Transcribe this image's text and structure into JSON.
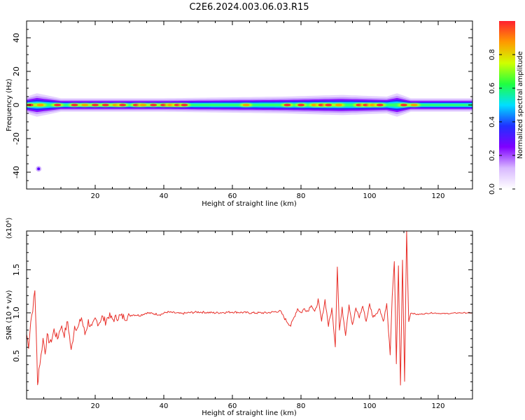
{
  "figure": {
    "title": "C2E6.2024.003.06.03.R15"
  },
  "colorbar": {
    "label": "Normalized spectral amplitude",
    "ticks": [
      "0.0",
      "0.2",
      "0.4",
      "0.6",
      "0.8"
    ],
    "tick_values": [
      0.0,
      0.2,
      0.4,
      0.6,
      0.8
    ],
    "range": [
      0,
      1
    ],
    "colormap": [
      "#ffffff",
      "#d8b8ff",
      "#8000ff",
      "#2030ff",
      "#00e0ff",
      "#20ff40",
      "#d0ff00",
      "#ff9900",
      "#ff2030"
    ]
  },
  "chart_data": [
    {
      "type": "heatmap",
      "title": "",
      "xlabel": "Height of straight line (km)",
      "ylabel": "Frequency (Hz)",
      "xlim": [
        0,
        130
      ],
      "ylim": [
        -50,
        50
      ],
      "xticks": [
        20,
        40,
        60,
        80,
        100,
        120
      ],
      "yticks": [
        -40,
        -20,
        0,
        20,
        40
      ],
      "band": {
        "center_hz": 0,
        "halfwidth_hz": [
          {
            "x": 0,
            "w": 5
          },
          {
            "x": 3,
            "w": 7
          },
          {
            "x": 10,
            "w": 4
          },
          {
            "x": 40,
            "w": 4
          },
          {
            "x": 75,
            "w": 5
          },
          {
            "x": 92,
            "w": 6
          },
          {
            "x": 105,
            "w": 5
          },
          {
            "x": 108,
            "w": 7
          },
          {
            "x": 112,
            "w": 4
          },
          {
            "x": 130,
            "w": 4
          }
        ],
        "hot_spots_km": [
          1,
          4,
          9,
          14,
          17,
          20,
          23,
          26,
          28,
          32,
          34,
          37,
          40,
          42,
          44,
          46,
          64,
          76,
          80,
          84,
          86,
          88,
          91,
          97,
          99,
          101,
          103,
          110,
          113
        ]
      },
      "isolated_spot": {
        "x": 3.5,
        "y": -38
      }
    },
    {
      "type": "line",
      "title": "",
      "xlabel": "Height of straight line (km)",
      "ylabel": "SNR (10 * v/v)",
      "multiplier_label": "(x10⁴)",
      "xlim": [
        0,
        130
      ],
      "ylim": [
        0,
        1.95
      ],
      "xticks": [
        20,
        40,
        60,
        80,
        100,
        120
      ],
      "yticks": [
        0.5,
        1.0,
        1.5
      ],
      "ytick_labels": [
        "0.5",
        "1.0",
        "1.5"
      ],
      "color": "#e8302a",
      "series": [
        {
          "x": [
            0,
            0.6,
            1.2,
            1.8,
            2.4,
            2.8,
            3.2,
            3.6,
            4.2,
            4.8,
            5.4,
            6,
            7,
            8,
            9,
            10,
            11,
            12,
            13,
            14,
            15,
            16,
            17,
            18,
            19,
            20,
            21,
            22,
            23,
            24,
            25,
            27,
            29,
            31,
            33,
            35,
            37,
            39,
            41,
            43,
            45,
            47,
            50,
            55,
            60,
            65,
            70,
            74,
            75.5,
            77,
            78,
            79,
            80,
            81,
            82,
            83,
            84,
            85,
            86,
            87,
            88,
            89,
            90,
            90.6,
            91.2,
            92,
            93,
            94,
            95,
            96,
            97,
            98,
            99,
            100,
            101,
            102,
            103,
            104,
            105,
            106,
            106.6,
            107.2,
            107.8,
            108.4,
            109,
            109.6,
            110.2,
            110.8,
            111.4,
            112,
            114,
            118,
            122,
            126,
            130
          ],
          "y": [
            0.75,
            0.62,
            0.9,
            1.05,
            1.25,
            0.8,
            0.15,
            0.35,
            0.5,
            0.7,
            0.55,
            0.72,
            0.65,
            0.8,
            0.7,
            0.85,
            0.75,
            0.9,
            0.55,
            0.85,
            0.82,
            0.95,
            0.75,
            0.9,
            0.82,
            0.92,
            0.88,
            0.95,
            0.9,
            0.97,
            0.92,
            0.96,
            0.95,
            0.98,
            0.97,
            1.0,
            0.99,
            0.98,
            1.01,
            1.0,
            0.99,
            1.0,
            1.01,
            1.0,
            1.01,
            1.0,
            1.0,
            1.02,
            0.92,
            0.85,
            0.95,
            1.05,
            1.0,
            1.05,
            1.02,
            1.1,
            1.0,
            1.15,
            0.9,
            1.15,
            0.85,
            1.05,
            0.62,
            1.55,
            0.8,
            1.05,
            0.75,
            1.1,
            0.85,
            1.05,
            0.95,
            1.08,
            0.9,
            1.1,
            0.95,
            1.0,
            1.05,
            0.9,
            1.1,
            0.5,
            1.2,
            1.6,
            0.4,
            1.55,
            0.15,
            1.6,
            0.2,
            1.95,
            0.9,
            1.0,
            0.98,
            1.0,
            0.99,
            1.0,
            1.0
          ]
        }
      ]
    }
  ]
}
